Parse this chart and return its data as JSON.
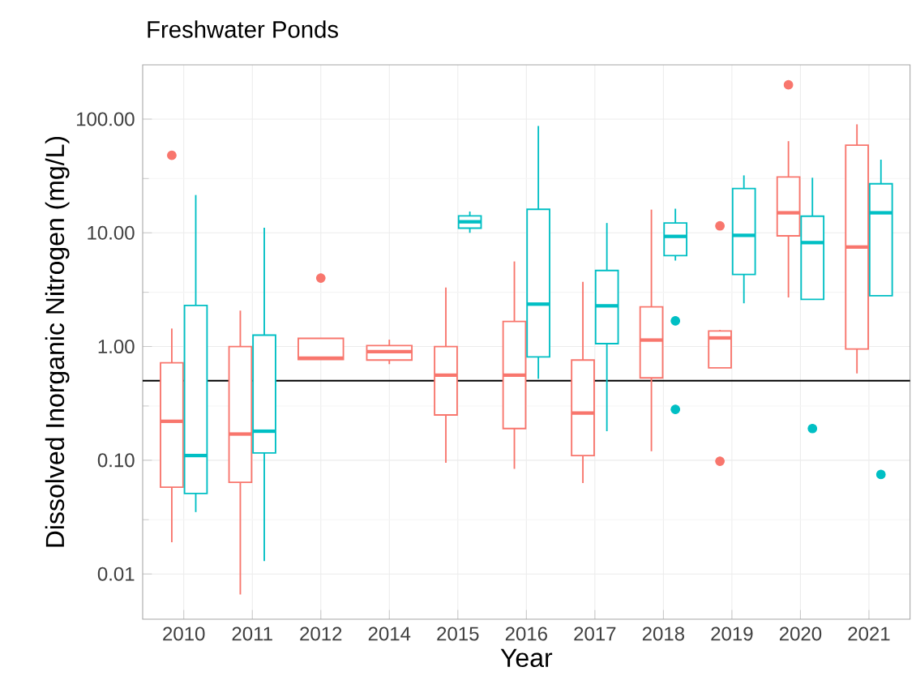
{
  "chart_data": {
    "type": "box",
    "title": "Freshwater Ponds",
    "xlabel": "Year",
    "ylabel": "Dissolved Inorganic Nitrogen (mg/L)",
    "categories": [
      "2010",
      "2011",
      "2012",
      "2014",
      "2015",
      "2016",
      "2017",
      "2018",
      "2019",
      "2020",
      "2021"
    ],
    "log": true,
    "grid": true,
    "ylim": [
      0.004,
      300
    ],
    "yticks": [
      {
        "value": 0.01,
        "label": "0.01"
      },
      {
        "value": 0.1,
        "label": "0.10"
      },
      {
        "value": 1,
        "label": "1.00"
      },
      {
        "value": 10,
        "label": "10.00"
      },
      {
        "value": 100,
        "label": "100.00"
      }
    ],
    "ref_lines": [
      {
        "axis": "y",
        "value": 0.5,
        "color": "#000000"
      }
    ],
    "series": [
      {
        "color": "#f8766d",
        "boxes": [
          {
            "low": 0.019,
            "q1": 0.058,
            "median": 0.22,
            "q3": 0.72,
            "high": 1.44,
            "outliers": [
              48
            ]
          },
          {
            "low": 0.0066,
            "q1": 0.064,
            "median": 0.17,
            "q3": 1.0,
            "high": 2.07
          },
          {
            "low": 0.77,
            "q1": 0.77,
            "median": 0.79,
            "q3": 1.18,
            "high": 1.18,
            "outliers": [
              4.0
            ]
          },
          {
            "low": 0.7,
            "q1": 0.76,
            "median": 0.9,
            "q3": 1.02,
            "high": 1.15
          },
          {
            "low": 0.095,
            "q1": 0.25,
            "median": 0.56,
            "q3": 1.0,
            "high": 3.3
          },
          {
            "low": 0.084,
            "q1": 0.19,
            "median": 0.56,
            "q3": 1.66,
            "high": 5.6
          },
          {
            "low": 0.063,
            "q1": 0.11,
            "median": 0.26,
            "q3": 0.76,
            "high": 3.7
          },
          {
            "low": 0.12,
            "q1": 0.53,
            "median": 1.14,
            "q3": 2.23,
            "high": 16
          },
          {
            "low": 0.65,
            "q1": 0.65,
            "median": 1.19,
            "q3": 1.37,
            "high": 1.4,
            "outliers": [
              11.5,
              0.098
            ]
          },
          {
            "low": 2.7,
            "q1": 9.4,
            "median": 15,
            "q3": 31,
            "high": 64,
            "outliers": [
              200
            ]
          },
          {
            "low": 0.58,
            "q1": 0.95,
            "median": 7.5,
            "q3": 59,
            "high": 90
          }
        ]
      },
      {
        "color": "#00bfc4",
        "boxes": [
          {
            "low": 0.035,
            "q1": 0.051,
            "median": 0.11,
            "q3": 2.3,
            "high": 21.5
          },
          {
            "low": 0.013,
            "q1": 0.116,
            "median": 0.18,
            "q3": 1.26,
            "high": 11.1
          },
          null,
          null,
          {
            "low": 10,
            "q1": 11,
            "median": 12.5,
            "q3": 14.1,
            "high": 15.4
          },
          {
            "low": 0.52,
            "q1": 0.81,
            "median": 2.36,
            "q3": 16.1,
            "high": 87
          },
          {
            "low": 0.18,
            "q1": 1.06,
            "median": 2.28,
            "q3": 4.66,
            "high": 12.2
          },
          {
            "low": 5.7,
            "q1": 6.3,
            "median": 9.3,
            "q3": 12.2,
            "high": 16.3,
            "outliers": [
              1.68,
              0.28
            ]
          },
          {
            "low": 2.4,
            "q1": 4.3,
            "median": 9.5,
            "q3": 24.5,
            "high": 32
          },
          {
            "low": 2.6,
            "q1": 2.6,
            "median": 8.2,
            "q3": 14,
            "high": 30.5,
            "outliers": [
              0.19
            ]
          },
          {
            "low": 2.8,
            "q1": 2.8,
            "median": 15,
            "q3": 27,
            "high": 44,
            "outliers": [
              0.075
            ]
          }
        ]
      }
    ]
  }
}
